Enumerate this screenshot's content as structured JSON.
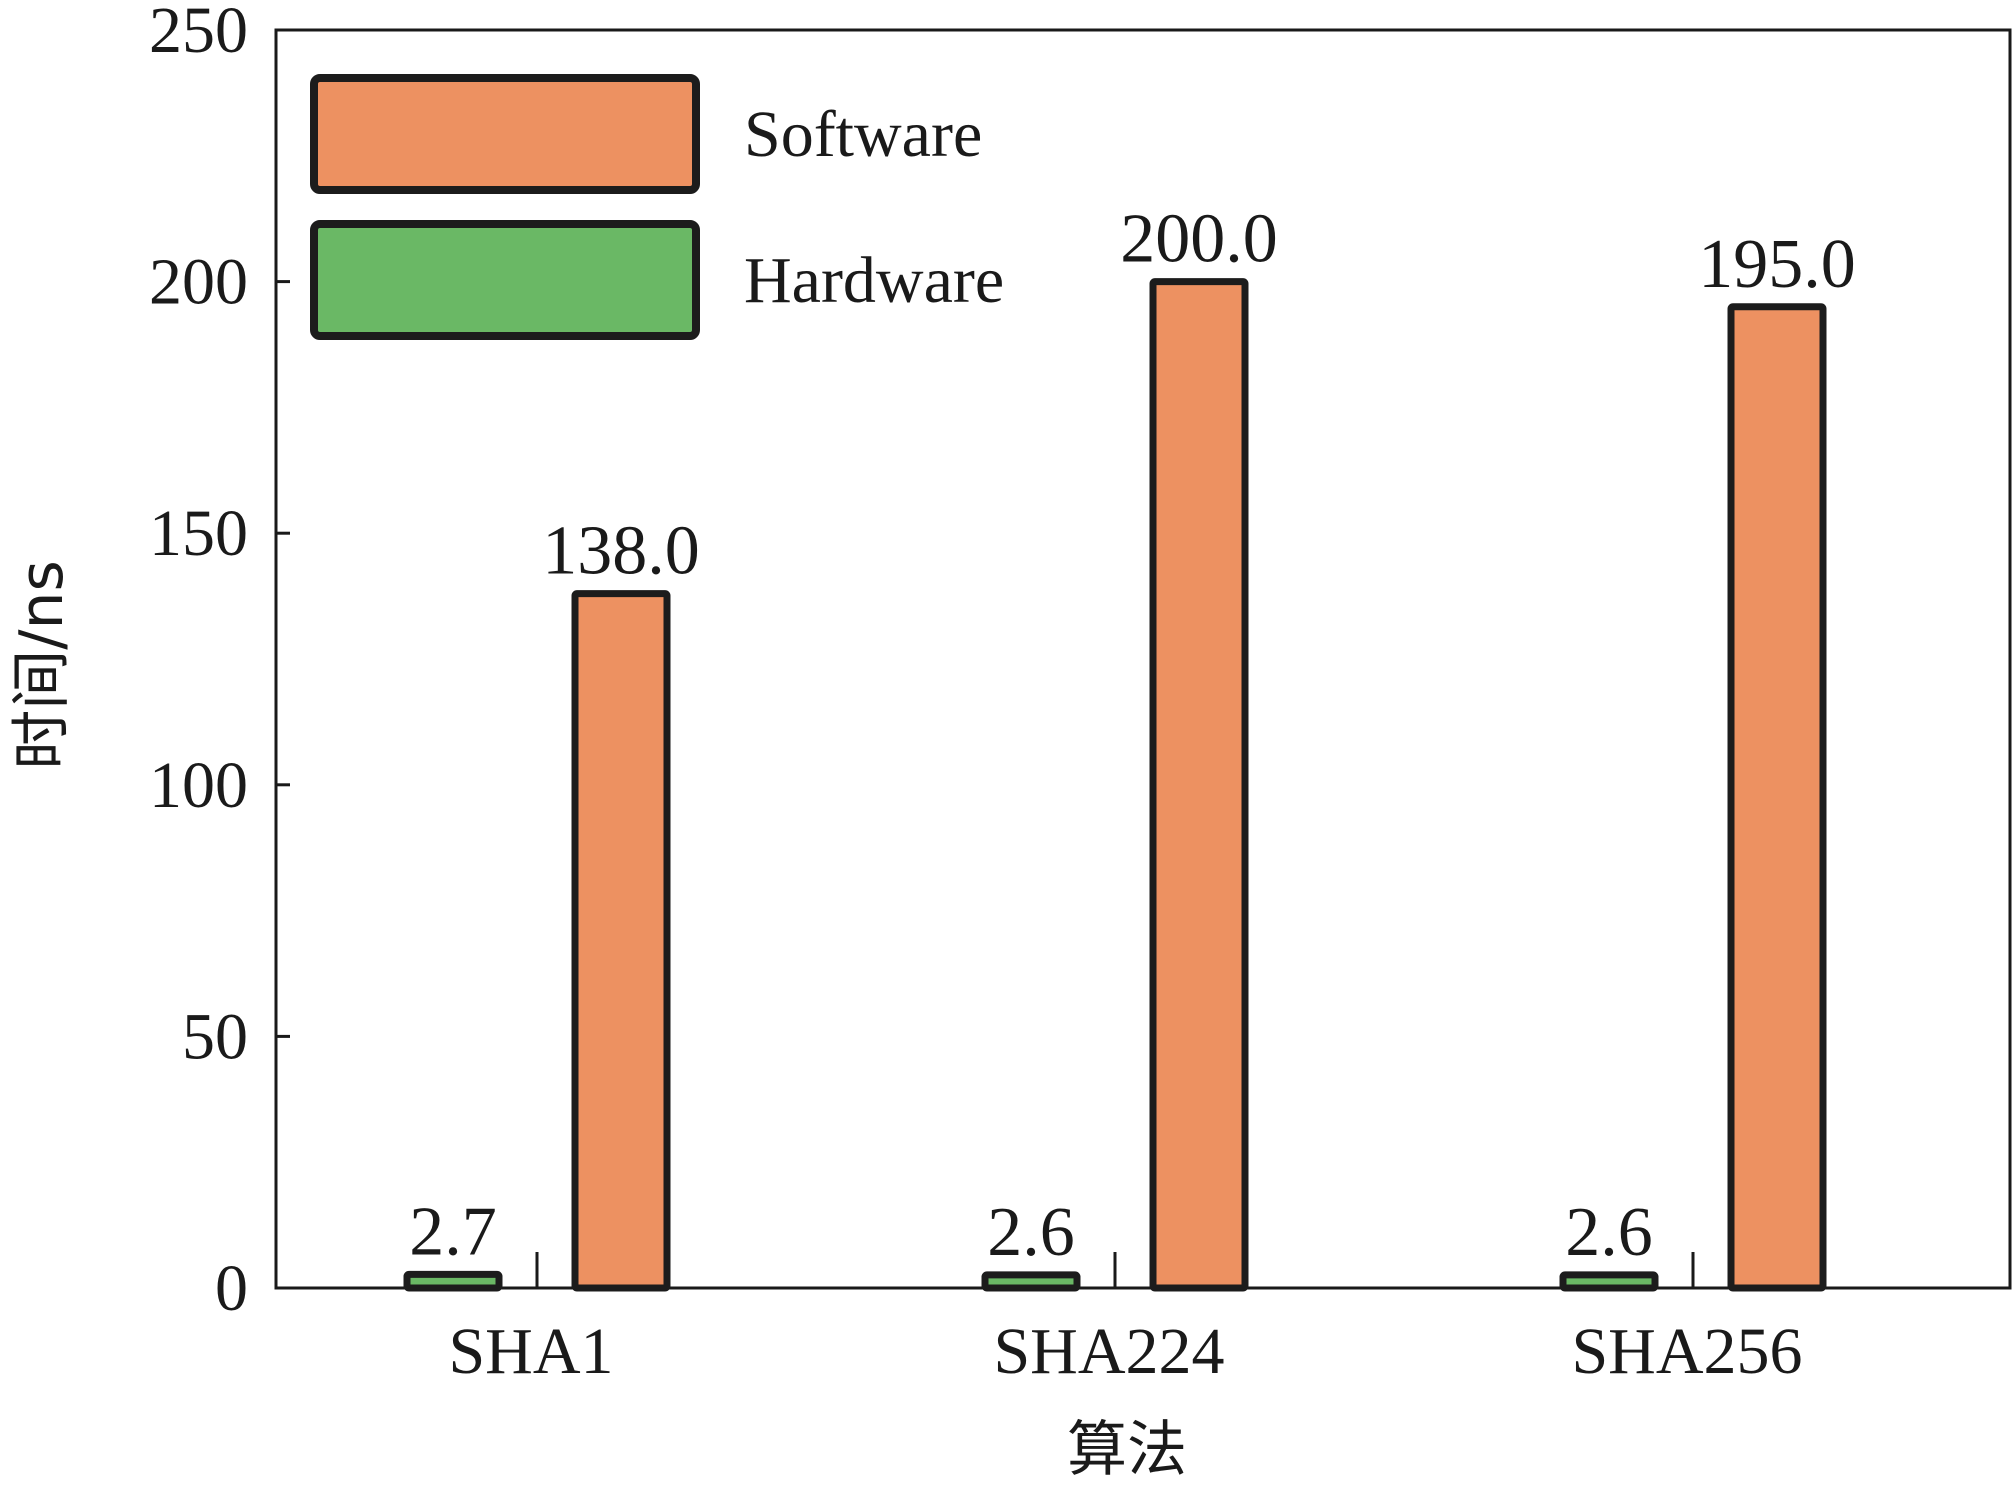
{
  "chart_data": {
    "type": "bar",
    "title": "",
    "xlabel": "算法",
    "ylabel": "时间/ns",
    "categories": [
      "SHA1",
      "SHA224",
      "SHA256"
    ],
    "series": [
      {
        "name": "Hardware",
        "color": "#6ab865",
        "values": [
          2.7,
          2.6,
          2.6
        ],
        "labels": [
          "2.7",
          "2.6",
          "2.6"
        ]
      },
      {
        "name": "Software",
        "color": "#ed9161",
        "values": [
          138.0,
          200.0,
          195.0
        ],
        "labels": [
          "138.0",
          "200.0",
          "195.0"
        ]
      }
    ],
    "ylim": [
      0,
      250
    ],
    "yticks": [
      "0",
      "50",
      "100",
      "150",
      "200",
      "250"
    ],
    "legend": {
      "position": "top-left",
      "order": [
        "Software",
        "Hardware"
      ]
    },
    "grid": false,
    "bar_outline_color": "#1c1c1c"
  }
}
